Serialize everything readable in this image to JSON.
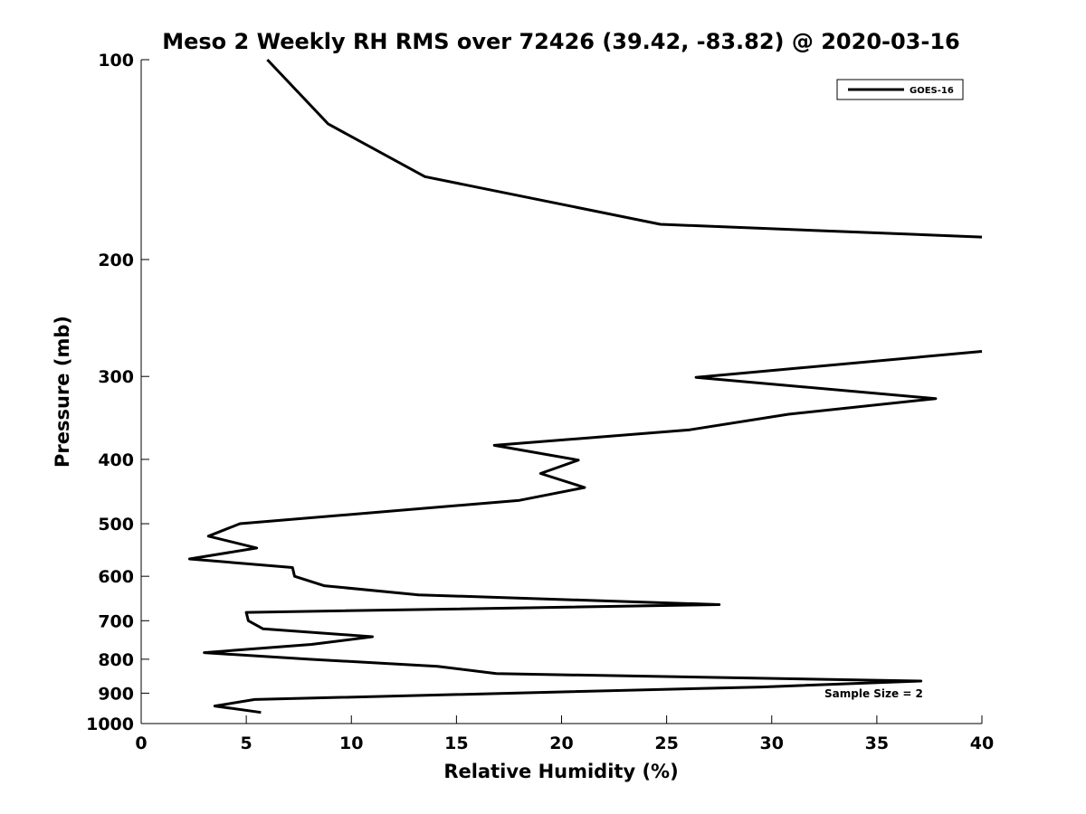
{
  "chart_data": {
    "type": "line",
    "title": "Meso 2 Weekly RH RMS over 72426 (39.42, -83.82) @ 2020-03-16",
    "xlabel": "Relative Humidity (%)",
    "ylabel": "Pressure (mb)",
    "xlim": [
      0,
      40
    ],
    "ylim": [
      100,
      1000
    ],
    "y_scale": "log",
    "y_reversed": true,
    "grid": false,
    "x_ticks": [
      0,
      5,
      10,
      15,
      20,
      25,
      30,
      35,
      40
    ],
    "y_ticks": [
      100,
      200,
      300,
      400,
      500,
      600,
      700,
      800,
      900,
      1000
    ],
    "legend": {
      "placement": "top-right",
      "entries": [
        "GOES-16"
      ]
    },
    "annotation": "Sample Size = 2",
    "line_color": "#000000",
    "series": [
      {
        "name": "GOES-16",
        "points": [
          [
            6.0,
            100
          ],
          [
            8.9,
            125
          ],
          [
            13.5,
            150
          ],
          [
            24.7,
            177
          ],
          [
            40,
            185
          ],
          [
            null,
            null
          ],
          [
            40,
            275
          ],
          [
            26.4,
            301
          ],
          [
            37.8,
            324
          ],
          [
            30.8,
            342
          ],
          [
            26.1,
            361
          ],
          [
            16.8,
            381
          ],
          [
            20.8,
            401
          ],
          [
            19.0,
            420
          ],
          [
            21.1,
            441
          ],
          [
            18.0,
            461
          ],
          [
            4.7,
            500
          ],
          [
            3.2,
            522
          ],
          [
            5.5,
            544
          ],
          [
            2.3,
            565
          ],
          [
            7.2,
            582
          ],
          [
            7.3,
            600
          ],
          [
            8.7,
            620
          ],
          [
            13.2,
            640
          ],
          [
            27.5,
            662
          ],
          [
            5.0,
            680
          ],
          [
            5.1,
            700
          ],
          [
            5.8,
            720
          ],
          [
            11.0,
            740
          ],
          [
            8.1,
            760
          ],
          [
            3.0,
            782
          ],
          [
            8.0,
            800
          ],
          [
            14.1,
            820
          ],
          [
            16.9,
            841
          ],
          [
            37.1,
            863
          ],
          [
            29.5,
            881
          ],
          [
            5.4,
            920
          ],
          [
            3.5,
            941
          ],
          [
            5.7,
            962
          ]
        ]
      }
    ]
  }
}
